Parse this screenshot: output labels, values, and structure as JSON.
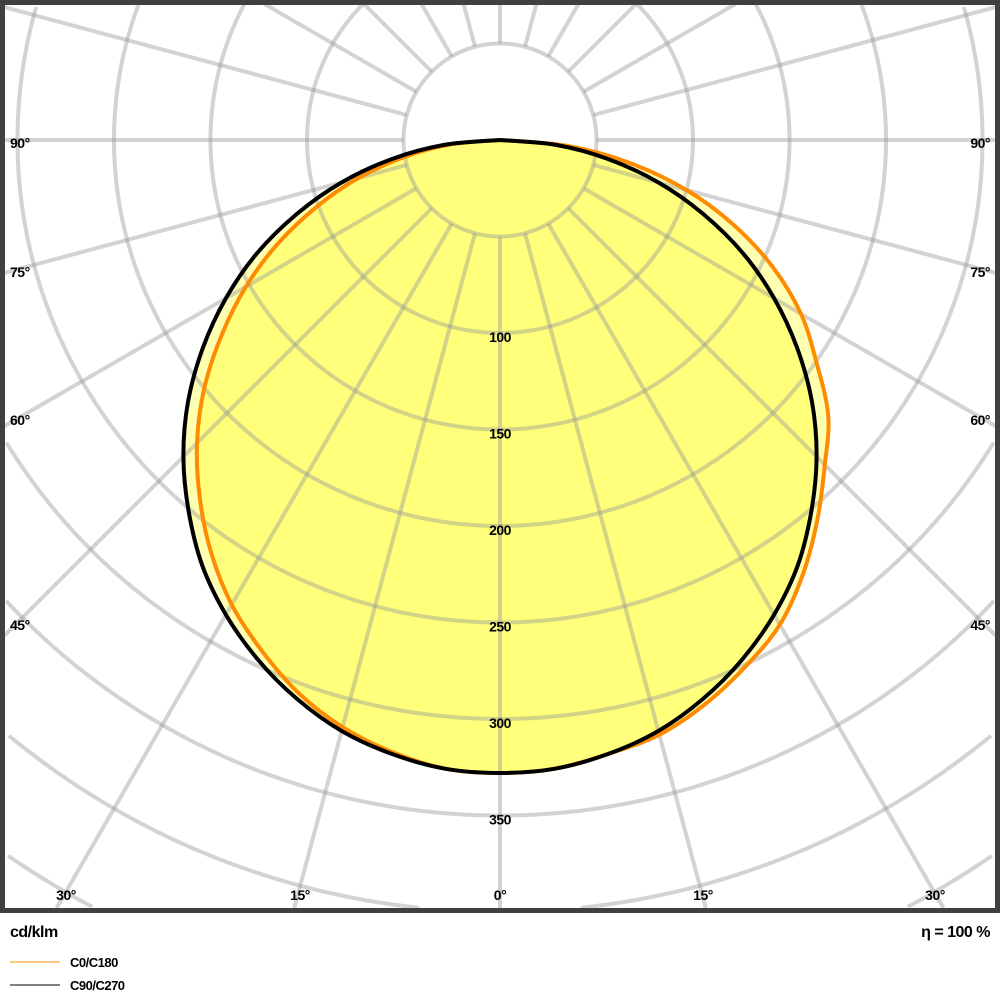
{
  "chart_data": {
    "type": "polar",
    "unit_label": "cd/klm",
    "efficiency_label": "η = 100 %",
    "radial_ticks": [
      100,
      150,
      200,
      250,
      300,
      350
    ],
    "radial_grid_step": 50,
    "angle_grid_step_deg": 15,
    "side_angle_labels": [
      "90°",
      "75°",
      "60°",
      "45°"
    ],
    "bottom_angle_labels": [
      "30°",
      "15°",
      "0°",
      "15°",
      "30°"
    ],
    "grid": true,
    "legend_placement": "bottom-left",
    "angles_deg": [
      0,
      5,
      10,
      15,
      20,
      25,
      30,
      35,
      40,
      45,
      50,
      55,
      60,
      65,
      70,
      75,
      80,
      85,
      90
    ],
    "series": [
      {
        "name": "C0/C180",
        "color": "#ff8c00",
        "C0": [
          328,
          327,
          323,
          319,
          311,
          301,
          290,
          274,
          256,
          238,
          222,
          200,
          180,
          156,
          129,
          100,
          68,
          35,
          0
        ],
        "C180": [
          328,
          327,
          322,
          315,
          305,
          292,
          278,
          261,
          242,
          222,
          200,
          176,
          152,
          127,
          101,
          76,
          50,
          25,
          0
        ]
      },
      {
        "name": "C90/C270",
        "color": "#000000",
        "C90": [
          328,
          327,
          323,
          317,
          308,
          297,
          284,
          269,
          251,
          232,
          211,
          188,
          164,
          139,
          112,
          85,
          57,
          29,
          0
        ],
        "C270": [
          328,
          327,
          323,
          317,
          308,
          297,
          284,
          269,
          251,
          232,
          211,
          188,
          164,
          139,
          112,
          85,
          57,
          29,
          0
        ]
      }
    ],
    "fill_color": "#ffff00",
    "grid_color": "#cccccc",
    "frame_color": "#404040"
  }
}
